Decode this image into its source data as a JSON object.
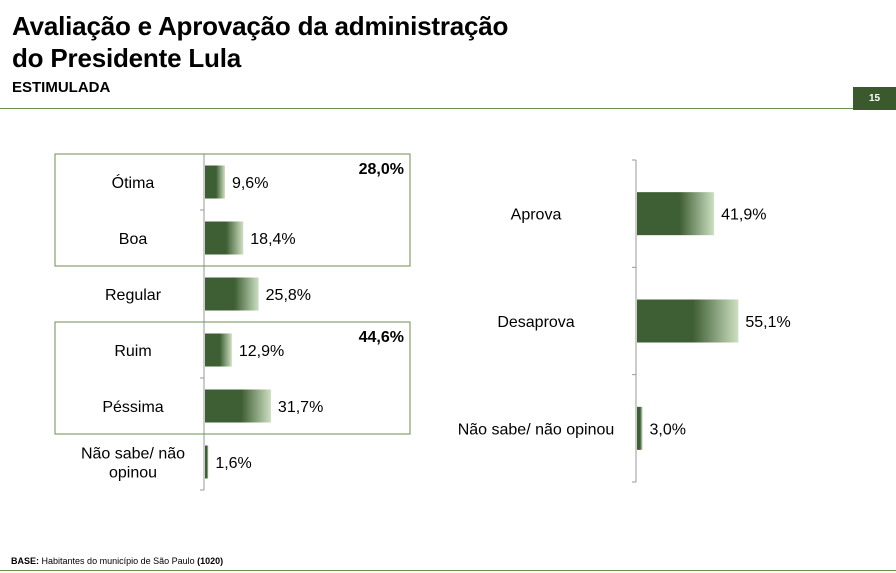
{
  "header": {
    "title_line1": "Avaliação e Aprovação da administração",
    "title_line2": "do Presidente Lula",
    "subtitle": "ESTIMULADA",
    "page_number": "15"
  },
  "footer": {
    "base_label": "BASE:",
    "base_text": "Habitantes do município de São Paulo",
    "base_count": "(1020)"
  },
  "colors": {
    "bar_dark": "#3e5e33",
    "bar_light": "#cde0c2",
    "box_border": "#6b8f4e",
    "axis": "#999999"
  },
  "chart_data": [
    {
      "type": "bar",
      "orientation": "horizontal",
      "categories": [
        "Ótima",
        "Boa",
        "Regular",
        "Ruim",
        "Péssima",
        "Não sabe/ não opinou"
      ],
      "category_lines": [
        [
          "Ótima"
        ],
        [
          "Boa"
        ],
        [
          "Regular"
        ],
        [
          "Ruim"
        ],
        [
          "Péssima"
        ],
        [
          "Não sabe/ não",
          "opinou"
        ]
      ],
      "values": [
        9.6,
        18.4,
        25.8,
        12.9,
        31.7,
        1.6
      ],
      "value_labels": [
        "9,6%",
        "18,4%",
        "25,8%",
        "12,9%",
        "31,7%",
        "1,6%"
      ],
      "groups": [
        {
          "label": "28,0%",
          "value": 28.0,
          "members": [
            "Ótima",
            "Boa"
          ]
        },
        {
          "label": "44,6%",
          "value": 44.6,
          "members": [
            "Ruim",
            "Péssima"
          ]
        }
      ],
      "xlim": [
        0,
        100
      ]
    },
    {
      "type": "bar",
      "orientation": "horizontal",
      "categories": [
        "Aprova",
        "Desaprova",
        "Não sabe/ não opinou"
      ],
      "category_lines": [
        [
          "Aprova"
        ],
        [
          "Desaprova"
        ],
        [
          "Não sabe/ não opinou"
        ]
      ],
      "values": [
        41.9,
        55.1,
        3.0
      ],
      "value_labels": [
        "41,9%",
        "55,1%",
        "3,0%"
      ],
      "xlim": [
        0,
        100
      ]
    }
  ]
}
